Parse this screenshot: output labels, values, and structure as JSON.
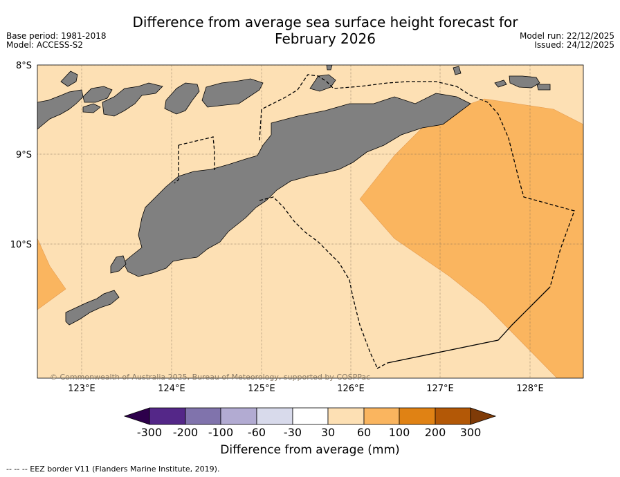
{
  "header": {
    "title_line1": "Difference from average sea surface height forecast for",
    "title_line2": "February 2026",
    "base_period": "Base period: 1981-2018",
    "model": "Model: ACCESS-S2",
    "model_run": "Model run: 22/12/2025",
    "issued": "Issued: 24/12/2025"
  },
  "map": {
    "lat_labels": [
      "8°S",
      "9°S",
      "10°S"
    ],
    "lon_labels": [
      "123°E",
      "124°E",
      "125°E",
      "126°E",
      "127°E",
      "128°E"
    ],
    "copyright": "© Commonwealth of Australia 2025, Bureau of Meteorology, supported by COSPPac",
    "colors": {
      "background": "#fde0b4",
      "anomaly_60_100": "#fab55f",
      "land": "#808080"
    }
  },
  "colorbar": {
    "ticks": [
      "-300",
      "-200",
      "-100",
      "-60",
      "-30",
      "30",
      "60",
      "100",
      "200",
      "300"
    ],
    "colors": [
      "#2d004b",
      "#542788",
      "#8073ac",
      "#b2abd2",
      "#d8daeb",
      "#ffffff",
      "#fde0b4",
      "#fab55f",
      "#e08214",
      "#b35806",
      "#7f3b08"
    ],
    "label": "Difference from average (mm)"
  },
  "footnote": "--  --  -- EEZ border V11 (Flanders Marine Institute, 2019)."
}
